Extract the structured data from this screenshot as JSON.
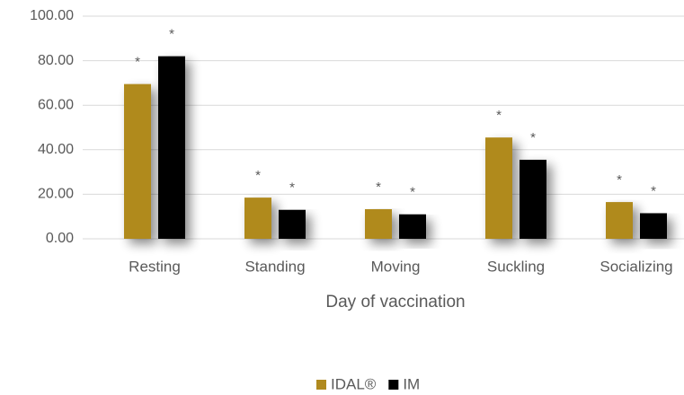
{
  "chart_data": {
    "type": "bar",
    "x_label": "Day of vaccination",
    "categories": [
      "Resting",
      "Standing",
      "Moving",
      "Suckling",
      "Socializing"
    ],
    "series": [
      {
        "name": "IDAL®",
        "color": "#b08a1f",
        "values": [
          69.5,
          18.5,
          13.3,
          45.5,
          16.5
        ],
        "annotations": [
          "*",
          "*",
          "*",
          "*",
          "*"
        ]
      },
      {
        "name": "IM",
        "color": "#000000",
        "values": [
          82,
          13,
          11,
          35.5,
          11.5
        ],
        "annotations": [
          "*",
          "*",
          "*",
          "*",
          "*"
        ]
      }
    ],
    "ylim": [
      0,
      100
    ],
    "yticks": [
      {
        "value": 0,
        "label": "0.00"
      },
      {
        "value": 20,
        "label": "20.00"
      },
      {
        "value": 40,
        "label": "40.00"
      },
      {
        "value": 60,
        "label": "60.00"
      },
      {
        "value": 80,
        "label": "80.00"
      },
      {
        "value": 100,
        "label": "100.00"
      }
    ],
    "grid": true,
    "legend": "bottom"
  }
}
